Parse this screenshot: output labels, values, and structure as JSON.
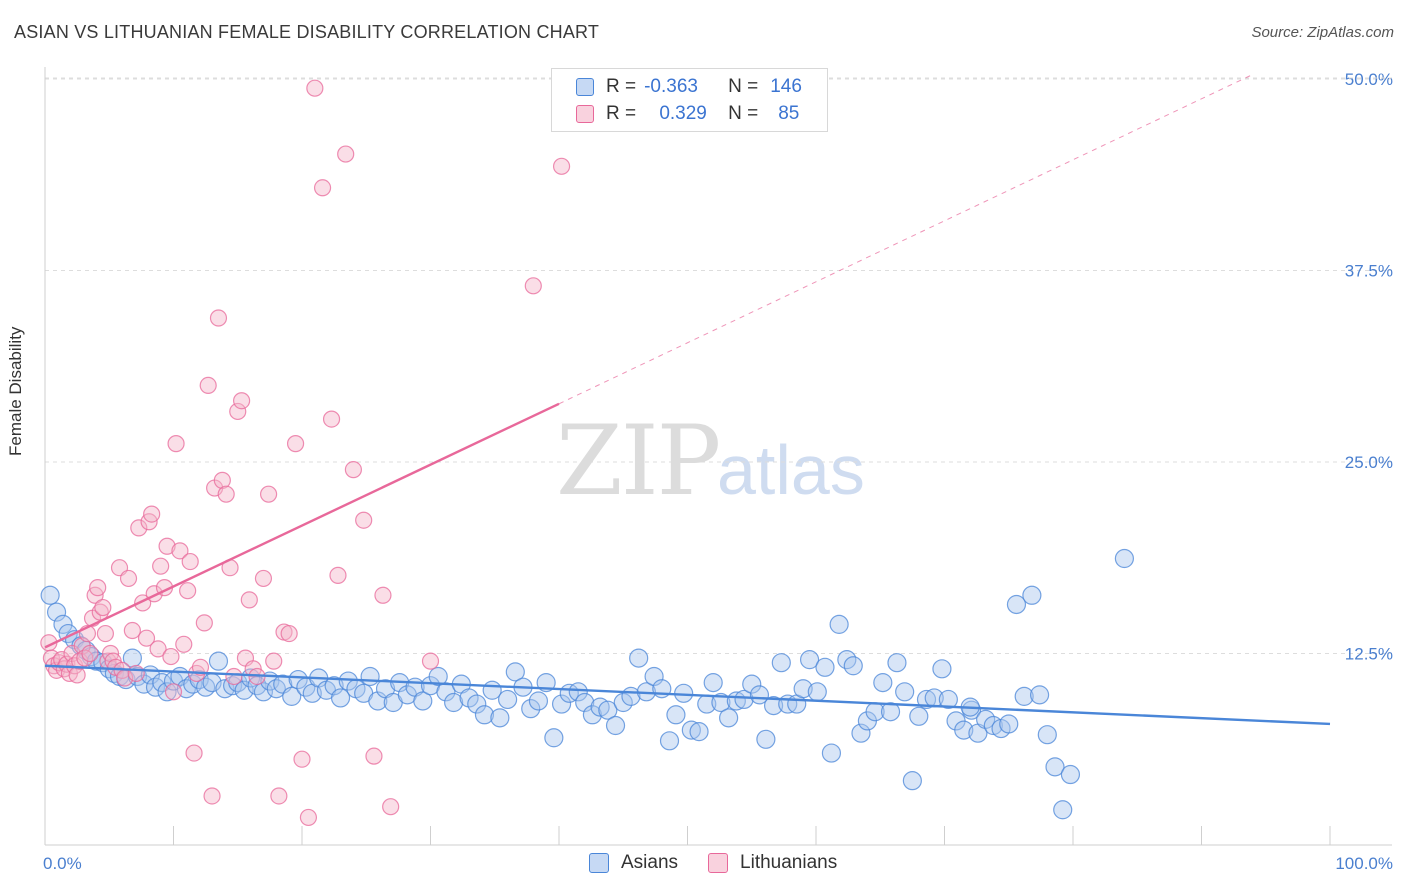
{
  "header": {
    "title": "ASIAN VS LITHUANIAN FEMALE DISABILITY CORRELATION CHART",
    "source": "Source: ZipAtlas.com"
  },
  "watermark": {
    "zip": "ZIP",
    "atlas": "atlas"
  },
  "legend_top": {
    "rows": [
      {
        "r_label": "R =",
        "r_value": "-0.363",
        "n_label": "N =",
        "n_value": "146",
        "color": "#a9c6ee"
      },
      {
        "r_label": "R =",
        "r_value": "0.329",
        "n_label": "N =",
        "n_value": "85",
        "color": "#f5b6c9"
      }
    ]
  },
  "legend_bottom": {
    "items": [
      {
        "label": "Asians",
        "color": "#a9c6ee"
      },
      {
        "label": "Lithuanians",
        "color": "#f5b6c9"
      }
    ]
  },
  "chart_data": {
    "type": "scatter",
    "title": "ASIAN VS LITHUANIAN FEMALE DISABILITY CORRELATION CHART",
    "xlabel": "",
    "ylabel": "Female Disability",
    "xlim": [
      0,
      100
    ],
    "ylim": [
      0,
      52
    ],
    "x_tick_labels": [
      "0.0%",
      "100.0%"
    ],
    "y_ticks": [
      12.5,
      25.0,
      37.5,
      50.0
    ],
    "y_tick_labels": [
      "12.5%",
      "25.0%",
      "37.5%",
      "50.0%"
    ],
    "grid": true,
    "legend_position": "top-center",
    "series": [
      {
        "name": "Asians",
        "color": "#4a86d8",
        "fill": "#a9c6ee",
        "trend": {
          "x": [
            0,
            100
          ],
          "y": [
            11.7,
            7.9
          ],
          "style": "solid"
        },
        "points": [
          [
            0.4,
            16.3
          ],
          [
            0.9,
            15.2
          ],
          [
            1.4,
            14.4
          ],
          [
            1.8,
            13.8
          ],
          [
            2.3,
            13.4
          ],
          [
            2.8,
            13.0
          ],
          [
            3.2,
            12.7
          ],
          [
            3.6,
            12.3
          ],
          [
            4.0,
            12.0
          ],
          [
            4.5,
            11.9
          ],
          [
            5.0,
            11.5
          ],
          [
            5.4,
            11.2
          ],
          [
            5.8,
            11.0
          ],
          [
            6.3,
            10.8
          ],
          [
            6.8,
            12.2
          ],
          [
            7.2,
            11.0
          ],
          [
            7.7,
            10.5
          ],
          [
            8.2,
            11.1
          ],
          [
            8.6,
            10.3
          ],
          [
            9.1,
            10.6
          ],
          [
            9.5,
            10.0
          ],
          [
            10.0,
            10.7
          ],
          [
            10.5,
            11.0
          ],
          [
            11.0,
            10.2
          ],
          [
            11.5,
            10.5
          ],
          [
            12.0,
            10.8
          ],
          [
            12.5,
            10.3
          ],
          [
            13.0,
            10.6
          ],
          [
            13.5,
            12.0
          ],
          [
            14.0,
            10.2
          ],
          [
            14.6,
            10.4
          ],
          [
            15.0,
            10.6
          ],
          [
            15.5,
            10.1
          ],
          [
            16.0,
            10.9
          ],
          [
            16.5,
            10.4
          ],
          [
            17.0,
            10.0
          ],
          [
            17.5,
            10.7
          ],
          [
            18.0,
            10.2
          ],
          [
            18.5,
            10.5
          ],
          [
            19.2,
            9.7
          ],
          [
            19.7,
            10.8
          ],
          [
            20.3,
            10.3
          ],
          [
            20.8,
            9.9
          ],
          [
            21.3,
            10.9
          ],
          [
            21.9,
            10.1
          ],
          [
            22.5,
            10.4
          ],
          [
            23.0,
            9.6
          ],
          [
            23.6,
            10.7
          ],
          [
            24.2,
            10.2
          ],
          [
            24.8,
            9.9
          ],
          [
            25.3,
            11.0
          ],
          [
            25.9,
            9.4
          ],
          [
            26.5,
            10.2
          ],
          [
            27.1,
            9.3
          ],
          [
            27.6,
            10.6
          ],
          [
            28.2,
            9.8
          ],
          [
            28.8,
            10.3
          ],
          [
            29.4,
            9.4
          ],
          [
            30.0,
            10.4
          ],
          [
            30.6,
            11.0
          ],
          [
            31.2,
            10.0
          ],
          [
            31.8,
            9.3
          ],
          [
            32.4,
            10.5
          ],
          [
            33.0,
            9.6
          ],
          [
            33.6,
            9.2
          ],
          [
            34.2,
            8.5
          ],
          [
            34.8,
            10.1
          ],
          [
            35.4,
            8.3
          ],
          [
            36.0,
            9.5
          ],
          [
            36.6,
            11.3
          ],
          [
            37.2,
            10.3
          ],
          [
            37.8,
            8.9
          ],
          [
            38.4,
            9.4
          ],
          [
            39.0,
            10.6
          ],
          [
            39.6,
            7.0
          ],
          [
            40.2,
            9.2
          ],
          [
            40.8,
            9.9
          ],
          [
            41.5,
            10.0
          ],
          [
            42.0,
            9.3
          ],
          [
            42.6,
            8.5
          ],
          [
            43.2,
            9.0
          ],
          [
            43.8,
            8.8
          ],
          [
            44.4,
            7.8
          ],
          [
            45.0,
            9.3
          ],
          [
            45.6,
            9.7
          ],
          [
            46.2,
            12.2
          ],
          [
            46.8,
            10.0
          ],
          [
            47.4,
            11.0
          ],
          [
            48.0,
            10.2
          ],
          [
            48.6,
            6.8
          ],
          [
            49.1,
            8.5
          ],
          [
            49.7,
            9.9
          ],
          [
            50.3,
            7.5
          ],
          [
            50.9,
            7.4
          ],
          [
            51.5,
            9.2
          ],
          [
            52.0,
            10.6
          ],
          [
            52.6,
            9.3
          ],
          [
            53.2,
            8.3
          ],
          [
            53.8,
            9.4
          ],
          [
            54.4,
            9.5
          ],
          [
            55.0,
            10.5
          ],
          [
            55.6,
            9.8
          ],
          [
            56.1,
            6.9
          ],
          [
            56.7,
            9.1
          ],
          [
            57.3,
            11.9
          ],
          [
            57.8,
            9.2
          ],
          [
            58.5,
            9.2
          ],
          [
            59.0,
            10.2
          ],
          [
            59.5,
            12.1
          ],
          [
            60.1,
            10.0
          ],
          [
            60.7,
            11.6
          ],
          [
            61.2,
            6.0
          ],
          [
            61.8,
            14.4
          ],
          [
            62.4,
            12.1
          ],
          [
            62.9,
            11.7
          ],
          [
            63.5,
            7.3
          ],
          [
            64.0,
            8.1
          ],
          [
            64.6,
            8.7
          ],
          [
            65.2,
            10.6
          ],
          [
            65.8,
            8.7
          ],
          [
            66.3,
            11.9
          ],
          [
            66.9,
            10.0
          ],
          [
            67.5,
            4.2
          ],
          [
            68.0,
            8.4
          ],
          [
            68.6,
            9.5
          ],
          [
            69.2,
            9.6
          ],
          [
            69.8,
            11.5
          ],
          [
            70.3,
            9.5
          ],
          [
            70.9,
            8.1
          ],
          [
            71.5,
            7.5
          ],
          [
            72.1,
            8.8
          ],
          [
            72.6,
            7.3
          ],
          [
            73.2,
            8.2
          ],
          [
            73.8,
            7.8
          ],
          [
            74.4,
            7.6
          ],
          [
            75.0,
            7.9
          ],
          [
            75.6,
            15.7
          ],
          [
            76.2,
            9.7
          ],
          [
            76.8,
            16.3
          ],
          [
            77.4,
            9.8
          ],
          [
            78.0,
            7.2
          ],
          [
            78.6,
            5.1
          ],
          [
            79.2,
            2.3
          ],
          [
            79.8,
            4.6
          ],
          [
            84.0,
            18.7
          ],
          [
            72.0,
            9.0
          ]
        ]
      },
      {
        "name": "Lithuanians",
        "color": "#e8689a",
        "fill": "#f5b6c9",
        "trend": {
          "x": [
            0,
            40
          ],
          "y": [
            12.9,
            28.8
          ],
          "style": "solid",
          "extended": {
            "x": [
              40,
              94
            ],
            "y": [
              28.8,
              50.3
            ],
            "style": "dashed"
          }
        },
        "points": [
          [
            0.3,
            13.2
          ],
          [
            0.5,
            12.2
          ],
          [
            0.7,
            11.7
          ],
          [
            0.9,
            11.4
          ],
          [
            1.1,
            11.9
          ],
          [
            1.3,
            12.1
          ],
          [
            1.5,
            11.5
          ],
          [
            1.7,
            11.8
          ],
          [
            1.9,
            11.2
          ],
          [
            2.1,
            12.5
          ],
          [
            2.3,
            11.7
          ],
          [
            2.5,
            11.1
          ],
          [
            2.7,
            12.0
          ],
          [
            2.9,
            13.0
          ],
          [
            3.1,
            12.2
          ],
          [
            3.3,
            13.8
          ],
          [
            3.5,
            12.5
          ],
          [
            3.7,
            14.8
          ],
          [
            3.9,
            16.3
          ],
          [
            4.1,
            16.8
          ],
          [
            4.3,
            15.2
          ],
          [
            4.5,
            15.5
          ],
          [
            4.7,
            13.8
          ],
          [
            4.9,
            12.0
          ],
          [
            5.1,
            12.5
          ],
          [
            5.3,
            12.0
          ],
          [
            5.5,
            11.6
          ],
          [
            5.8,
            18.1
          ],
          [
            6.0,
            11.4
          ],
          [
            6.2,
            10.9
          ],
          [
            6.5,
            17.4
          ],
          [
            6.8,
            14.0
          ],
          [
            7.1,
            11.2
          ],
          [
            7.3,
            20.7
          ],
          [
            7.6,
            15.8
          ],
          [
            7.9,
            13.5
          ],
          [
            8.1,
            21.1
          ],
          [
            8.3,
            21.6
          ],
          [
            8.5,
            16.4
          ],
          [
            8.8,
            12.8
          ],
          [
            9.0,
            18.2
          ],
          [
            9.3,
            16.8
          ],
          [
            9.5,
            19.5
          ],
          [
            9.8,
            12.3
          ],
          [
            10.0,
            10.0
          ],
          [
            10.2,
            26.2
          ],
          [
            10.5,
            19.2
          ],
          [
            10.8,
            13.1
          ],
          [
            11.1,
            16.6
          ],
          [
            11.3,
            18.5
          ],
          [
            11.6,
            6.0
          ],
          [
            11.8,
            11.2
          ],
          [
            12.1,
            11.6
          ],
          [
            12.4,
            14.5
          ],
          [
            12.7,
            30.0
          ],
          [
            13.0,
            3.2
          ],
          [
            13.2,
            23.3
          ],
          [
            13.5,
            34.4
          ],
          [
            13.8,
            23.8
          ],
          [
            14.1,
            22.9
          ],
          [
            14.4,
            18.1
          ],
          [
            14.7,
            11.0
          ],
          [
            15.0,
            28.3
          ],
          [
            15.3,
            29.0
          ],
          [
            15.6,
            12.2
          ],
          [
            15.9,
            16.0
          ],
          [
            16.2,
            11.5
          ],
          [
            16.5,
            11.0
          ],
          [
            17.0,
            17.4
          ],
          [
            17.4,
            22.9
          ],
          [
            17.8,
            12.0
          ],
          [
            18.2,
            3.2
          ],
          [
            18.6,
            13.9
          ],
          [
            19.0,
            13.8
          ],
          [
            19.5,
            26.2
          ],
          [
            20.0,
            5.6
          ],
          [
            20.5,
            1.8
          ],
          [
            21.0,
            49.4
          ],
          [
            21.6,
            42.9
          ],
          [
            22.3,
            27.8
          ],
          [
            22.8,
            17.6
          ],
          [
            23.4,
            45.1
          ],
          [
            24.0,
            24.5
          ],
          [
            24.8,
            21.2
          ],
          [
            25.6,
            5.8
          ],
          [
            26.3,
            16.3
          ],
          [
            26.9,
            2.5
          ],
          [
            30.0,
            12.0
          ],
          [
            38.0,
            36.5
          ],
          [
            40.2,
            44.3
          ]
        ]
      }
    ]
  }
}
